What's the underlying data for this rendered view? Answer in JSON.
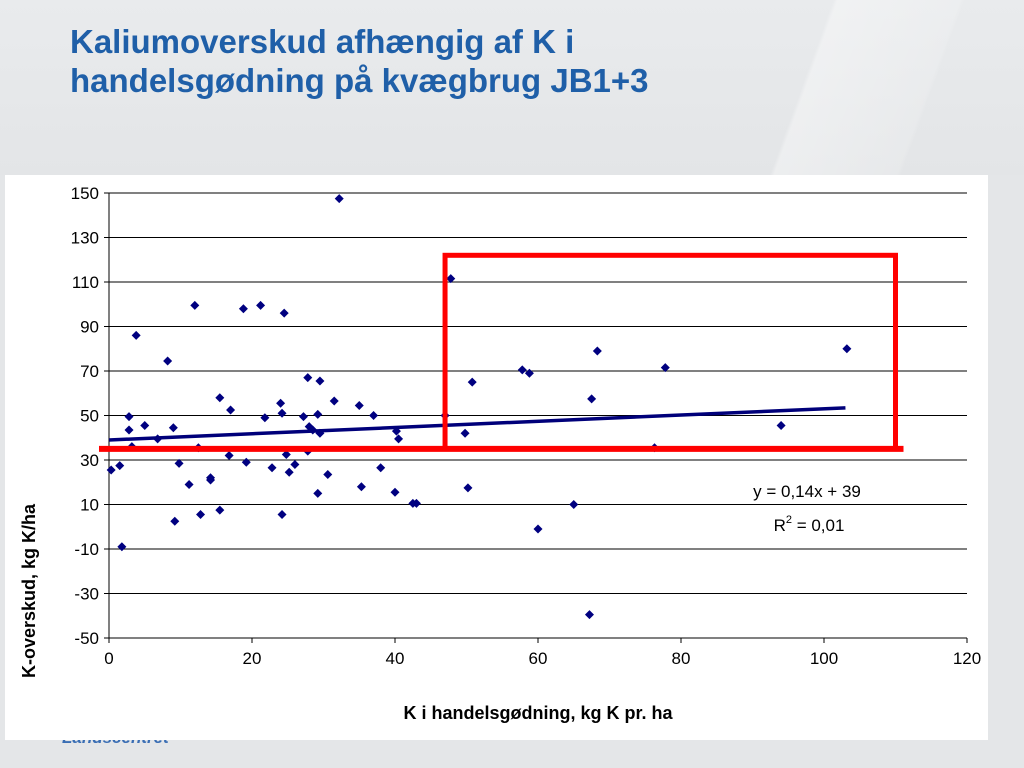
{
  "slide": {
    "title_line1": "Kaliumoverskud afhængig af K i",
    "title_line2": "handelsgødning på kvægbrug JB1+3",
    "footer": "Landscentret"
  },
  "chart_data": {
    "type": "scatter",
    "xlabel": "K i handelsgødning, kg K pr. ha",
    "ylabel": "K-overskud, kg K/ha",
    "xlim": [
      0,
      120
    ],
    "ylim": [
      -50,
      150
    ],
    "x_ticks": [
      0,
      20,
      40,
      60,
      80,
      100,
      120
    ],
    "y_ticks": [
      150,
      130,
      110,
      90,
      70,
      50,
      30,
      10,
      -10,
      -30,
      -50
    ],
    "grid": "horizontal",
    "marker_color": "#000080",
    "trendline": {
      "slope": 0.14,
      "intercept": 39,
      "x_range": [
        0,
        103
      ],
      "color": "#00007a",
      "equation": "y = 0,14x + 39",
      "r2_prefix": "R",
      "r2_exp": "2",
      "r2_suffix": " = 0,01"
    },
    "highlight": {
      "color": "#ff0000",
      "threshold_y": 35,
      "box_x": [
        47,
        110
      ],
      "box_y": [
        35,
        122
      ]
    },
    "points": [
      [
        0.3,
        25.5
      ],
      [
        1.5,
        27.5
      ],
      [
        1.8,
        -9
      ],
      [
        2.8,
        49.5
      ],
      [
        2.8,
        43.5
      ],
      [
        3.2,
        36
      ],
      [
        3.8,
        86
      ],
      [
        5,
        45.5
      ],
      [
        6.8,
        39.5
      ],
      [
        8.2,
        74.5
      ],
      [
        9,
        44.5
      ],
      [
        9.2,
        2.5
      ],
      [
        9.8,
        28.5
      ],
      [
        11.2,
        19
      ],
      [
        12,
        99.5
      ],
      [
        12.5,
        35.5
      ],
      [
        12.8,
        5.5
      ],
      [
        14.2,
        22
      ],
      [
        14.2,
        21
      ],
      [
        15.5,
        58
      ],
      [
        15.5,
        7.5
      ],
      [
        16.8,
        32
      ],
      [
        17,
        52.5
      ],
      [
        18.8,
        98
      ],
      [
        19.2,
        29
      ],
      [
        21.2,
        99.5
      ],
      [
        21.8,
        49
      ],
      [
        22.8,
        26.5
      ],
      [
        24,
        55.5
      ],
      [
        24.2,
        51
      ],
      [
        24.2,
        5.5
      ],
      [
        24.5,
        96
      ],
      [
        24.8,
        32.5
      ],
      [
        25.2,
        24.5
      ],
      [
        26,
        28
      ],
      [
        27.2,
        49.5
      ],
      [
        27.8,
        67
      ],
      [
        27.8,
        34
      ],
      [
        28,
        45
      ],
      [
        28.5,
        43.5
      ],
      [
        29.2,
        50.5
      ],
      [
        29.2,
        15
      ],
      [
        29.5,
        42
      ],
      [
        29.5,
        65.5
      ],
      [
        30.6,
        23.5
      ],
      [
        31.5,
        56.5
      ],
      [
        32.2,
        147.5
      ],
      [
        35,
        54.5
      ],
      [
        35.3,
        18
      ],
      [
        37,
        50
      ],
      [
        38,
        26.5
      ],
      [
        40,
        15.5
      ],
      [
        40.2,
        43
      ],
      [
        40.5,
        39.5
      ],
      [
        42.5,
        10.5
      ],
      [
        43,
        10.5
      ],
      [
        47,
        50
      ],
      [
        47.8,
        111.5
      ],
      [
        49.8,
        42
      ],
      [
        50.2,
        17.5
      ],
      [
        50.8,
        65
      ],
      [
        57.8,
        70.5
      ],
      [
        58.8,
        69
      ],
      [
        60,
        -1
      ],
      [
        65,
        10
      ],
      [
        67.2,
        -39.5
      ],
      [
        67.5,
        57.5
      ],
      [
        68.3,
        79
      ],
      [
        76.3,
        35.5
      ],
      [
        77.8,
        71.5
      ],
      [
        94,
        45.5
      ],
      [
        103.2,
        80
      ]
    ]
  }
}
